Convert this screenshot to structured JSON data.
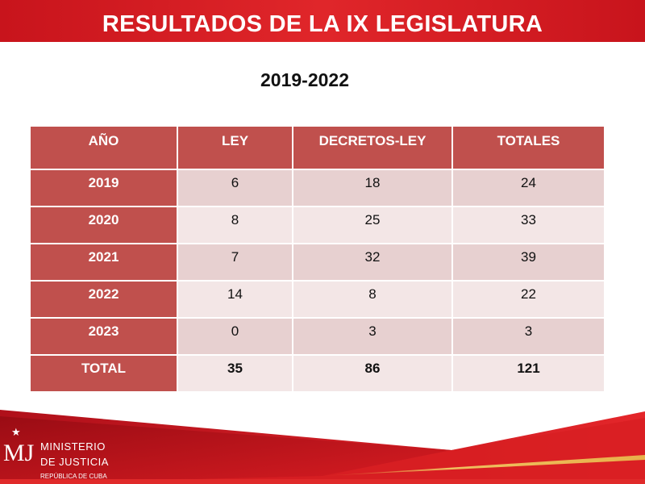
{
  "header": {
    "title": "RESULTADOS DE LA IX LEGISLATURA"
  },
  "subtitle": "2019-2022",
  "table": {
    "columns": [
      "AÑO",
      "LEY",
      "DECRETOS-LEY",
      "TOTALES"
    ],
    "rows": [
      {
        "year": "2019",
        "ley": "6",
        "decretos": "18",
        "totales": "24"
      },
      {
        "year": "2020",
        "ley": "8",
        "decretos": "25",
        "totales": "33"
      },
      {
        "year": "2021",
        "ley": "7",
        "decretos": "32",
        "totales": "39"
      },
      {
        "year": "2022",
        "ley": "14",
        "decretos": "8",
        "totales": "22"
      },
      {
        "year": "2023",
        "ley": "0",
        "decretos": "3",
        "totales": "3"
      },
      {
        "year": "TOTAL",
        "ley": "35",
        "decretos": "86",
        "totales": "121"
      }
    ]
  },
  "footer": {
    "logo_mark": "MJ",
    "line1": "MINISTERIO",
    "line2": "DE JUSTICIA",
    "line3": "REPÚBLICA DE CUBA"
  },
  "colors": {
    "title_bar": "#d81e22",
    "table_header": "#c0504d",
    "row_dark": "#e7d0d0",
    "row_light": "#f3e6e6"
  }
}
